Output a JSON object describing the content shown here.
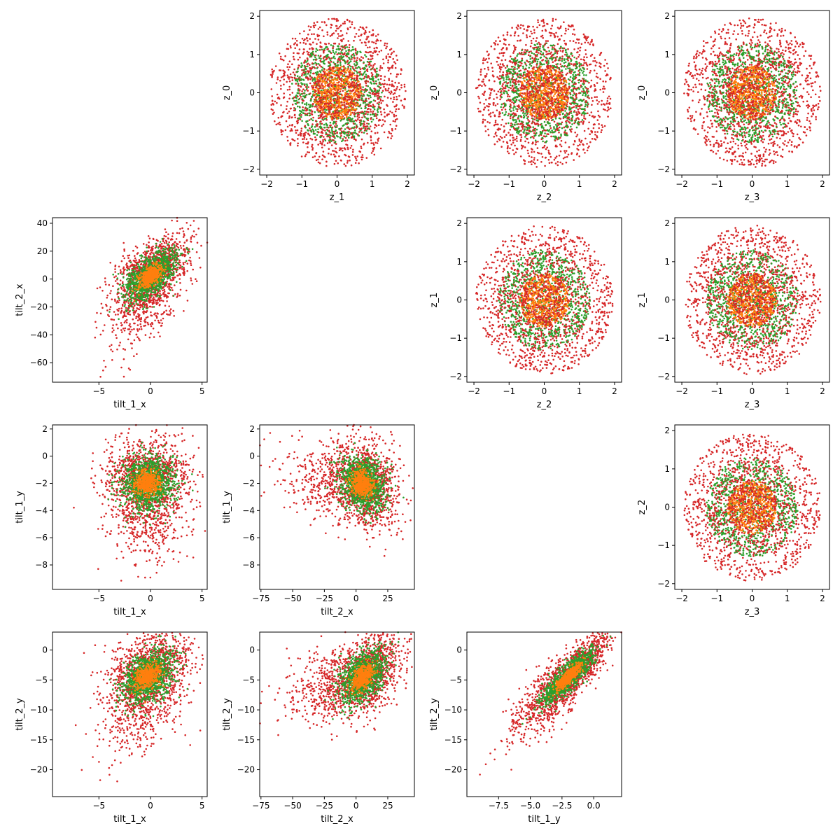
{
  "figure": {
    "type": "scatter matrix"
  },
  "colors": {
    "red": "#d62728",
    "green": "#2ca02c",
    "orange": "#ff7f0e",
    "axis": "#000000"
  },
  "chart_data": [
    {
      "id": "z0_z1",
      "type": "scatter",
      "row": 0,
      "col": 1,
      "kind": "disc",
      "xlabel": "z_1",
      "ylabel": "z_0",
      "xlim": [
        -2.2,
        2.2
      ],
      "ylim": [
        -2.15,
        2.15
      ],
      "xticks": [
        -2,
        -1,
        0,
        1,
        2
      ],
      "xticklabels": [
        "−2",
        "−1",
        "0",
        "1",
        "2"
      ],
      "yticks": [
        -2,
        -1,
        0,
        1,
        2
      ],
      "yticklabels": [
        "−2",
        "−1",
        "0",
        "1",
        "2"
      ]
    },
    {
      "id": "z0_z2",
      "type": "scatter",
      "row": 0,
      "col": 2,
      "kind": "disc",
      "xlabel": "z_2",
      "ylabel": "z_0",
      "xlim": [
        -2.2,
        2.2
      ],
      "ylim": [
        -2.15,
        2.15
      ],
      "xticks": [
        -2,
        -1,
        0,
        1,
        2
      ],
      "xticklabels": [
        "−2",
        "−1",
        "0",
        "1",
        "2"
      ],
      "yticks": [
        -2,
        -1,
        0,
        1,
        2
      ],
      "yticklabels": [
        "−2",
        "−1",
        "0",
        "1",
        "2"
      ]
    },
    {
      "id": "z0_z3",
      "type": "scatter",
      "row": 0,
      "col": 3,
      "kind": "disc",
      "xlabel": "z_3",
      "ylabel": "z_0",
      "xlim": [
        -2.2,
        2.2
      ],
      "ylim": [
        -2.15,
        2.15
      ],
      "xticks": [
        -2,
        -1,
        0,
        1,
        2
      ],
      "xticklabels": [
        "−2",
        "−1",
        "0",
        "1",
        "2"
      ],
      "yticks": [
        -2,
        -1,
        0,
        1,
        2
      ],
      "yticklabels": [
        "−2",
        "−1",
        "0",
        "1",
        "2"
      ]
    },
    {
      "id": "tilt2x_tilt1x",
      "type": "scatter",
      "row": 1,
      "col": 0,
      "kind": "corr",
      "xlabel": "tilt_1_x",
      "ylabel": "tilt_2_x",
      "xlim": [
        -9.5,
        5.5
      ],
      "ylim": [
        -74,
        44
      ],
      "xticks": [
        -5,
        0,
        5
      ],
      "xticklabels": [
        "−5",
        "0",
        "5"
      ],
      "yticks": [
        -60,
        -40,
        -20,
        0,
        20,
        40
      ],
      "yticklabels": [
        "−60",
        "−40",
        "−20",
        "0",
        "20",
        "40"
      ],
      "x_center": 0,
      "x_sd": 1.9,
      "y_center": 2,
      "y_sd": 14,
      "rho": 0.55,
      "tail": "low-y"
    },
    {
      "id": "z1_z2",
      "type": "scatter",
      "row": 1,
      "col": 2,
      "kind": "disc",
      "xlabel": "z_2",
      "ylabel": "z_1",
      "xlim": [
        -2.2,
        2.2
      ],
      "ylim": [
        -2.15,
        2.15
      ],
      "xticks": [
        -2,
        -1,
        0,
        1,
        2
      ],
      "xticklabels": [
        "−2",
        "−1",
        "0",
        "1",
        "2"
      ],
      "yticks": [
        -2,
        -1,
        0,
        1,
        2
      ],
      "yticklabels": [
        "−2",
        "−1",
        "0",
        "1",
        "2"
      ]
    },
    {
      "id": "z1_z3",
      "type": "scatter",
      "row": 1,
      "col": 3,
      "kind": "disc",
      "xlabel": "z_3",
      "ylabel": "z_1",
      "xlim": [
        -2.2,
        2.2
      ],
      "ylim": [
        -2.15,
        2.15
      ],
      "xticks": [
        -2,
        -1,
        0,
        1,
        2
      ],
      "xticklabels": [
        "−2",
        "−1",
        "0",
        "1",
        "2"
      ],
      "yticks": [
        -2,
        -1,
        0,
        1,
        2
      ],
      "yticklabels": [
        "−2",
        "−1",
        "0",
        "1",
        "2"
      ]
    },
    {
      "id": "tilt1y_tilt1x",
      "type": "scatter",
      "row": 2,
      "col": 0,
      "kind": "corr",
      "xlabel": "tilt_1_x",
      "ylabel": "tilt_1_y",
      "xlim": [
        -9.5,
        5.5
      ],
      "ylim": [
        -9.8,
        2.3
      ],
      "xticks": [
        -5,
        0,
        5
      ],
      "xticklabels": [
        "−5",
        "0",
        "5"
      ],
      "yticks": [
        -8,
        -6,
        -4,
        -2,
        0,
        2
      ],
      "yticklabels": [
        "−8",
        "−6",
        "−4",
        "−2",
        "0",
        "2"
      ],
      "x_center": -0.3,
      "x_sd": 2.0,
      "y_center": -2.0,
      "y_sd": 1.6,
      "rho": 0.0,
      "tail": "low-y"
    },
    {
      "id": "tilt1y_tilt2x",
      "type": "scatter",
      "row": 2,
      "col": 1,
      "kind": "corr",
      "xlabel": "tilt_2_x",
      "ylabel": "tilt_1_y",
      "xlim": [
        -76,
        46
      ],
      "ylim": [
        -9.8,
        2.3
      ],
      "xticks": [
        -75,
        -50,
        -25,
        0,
        25
      ],
      "xticklabels": [
        "−75",
        "−50",
        "−25",
        "0",
        "25"
      ],
      "yticks": [
        -8,
        -6,
        -4,
        -2,
        0,
        2
      ],
      "yticklabels": [
        "−8",
        "−6",
        "−4",
        "−2",
        "0",
        "2"
      ],
      "x_center": 5,
      "x_sd": 14,
      "y_center": -2.0,
      "y_sd": 1.6,
      "rho": -0.2,
      "tail": "low-x"
    },
    {
      "id": "z2_z3",
      "type": "scatter",
      "row": 2,
      "col": 3,
      "kind": "disc",
      "xlabel": "z_3",
      "ylabel": "z_2",
      "xlim": [
        -2.2,
        2.2
      ],
      "ylim": [
        -2.15,
        2.15
      ],
      "xticks": [
        -2,
        -1,
        0,
        1,
        2
      ],
      "xticklabels": [
        "−2",
        "−1",
        "0",
        "1",
        "2"
      ],
      "yticks": [
        -2,
        -1,
        0,
        1,
        2
      ],
      "yticklabels": [
        "−2",
        "−1",
        "0",
        "1",
        "2"
      ]
    },
    {
      "id": "tilt2y_tilt1x",
      "type": "scatter",
      "row": 3,
      "col": 0,
      "kind": "corr",
      "xlabel": "tilt_1_x",
      "ylabel": "tilt_2_y",
      "xlim": [
        -9.5,
        5.5
      ],
      "ylim": [
        -24.5,
        3
      ],
      "xticks": [
        -5,
        0,
        5
      ],
      "xticklabels": [
        "−5",
        "0",
        "5"
      ],
      "yticks": [
        -20,
        -15,
        -10,
        -5,
        0
      ],
      "yticklabels": [
        "−20",
        "−15",
        "−10",
        "−5",
        "0"
      ],
      "x_center": -0.3,
      "x_sd": 2.0,
      "y_center": -4.5,
      "y_sd": 3.5,
      "rho": 0.35,
      "tail": "low-y"
    },
    {
      "id": "tilt2y_tilt2x",
      "type": "scatter",
      "row": 3,
      "col": 1,
      "kind": "corr",
      "xlabel": "tilt_2_x",
      "ylabel": "tilt_2_y",
      "xlim": [
        -76,
        46
      ],
      "ylim": [
        -24.5,
        3
      ],
      "xticks": [
        -75,
        -50,
        -25,
        0,
        25
      ],
      "xticklabels": [
        "−75",
        "−50",
        "−25",
        "0",
        "25"
      ],
      "yticks": [
        -20,
        -15,
        -10,
        -5,
        0
      ],
      "yticklabels": [
        "−20",
        "−15",
        "−10",
        "−5",
        "0"
      ],
      "x_center": 5,
      "x_sd": 14,
      "y_center": -4.5,
      "y_sd": 3.5,
      "rho": 0.4,
      "tail": "low-x"
    },
    {
      "id": "tilt2y_tilt1y",
      "type": "scatter",
      "row": 3,
      "col": 2,
      "kind": "corr",
      "xlabel": "tilt_1_y",
      "ylabel": "tilt_2_y",
      "xlim": [
        -10,
        2.2
      ],
      "ylim": [
        -24.5,
        3
      ],
      "xticks": [
        -7.5,
        -5,
        -2.5,
        0
      ],
      "xticklabels": [
        "−7.5",
        "−5.0",
        "−2.5",
        "0.0"
      ],
      "yticks": [
        -20,
        -15,
        -10,
        -5,
        0
      ],
      "yticklabels": [
        "−20",
        "−15",
        "−10",
        "−5",
        "0"
      ],
      "x_center": -2.0,
      "x_sd": 1.6,
      "y_center": -4.5,
      "y_sd": 3.5,
      "rho": 0.85,
      "tail": "low-both"
    }
  ]
}
